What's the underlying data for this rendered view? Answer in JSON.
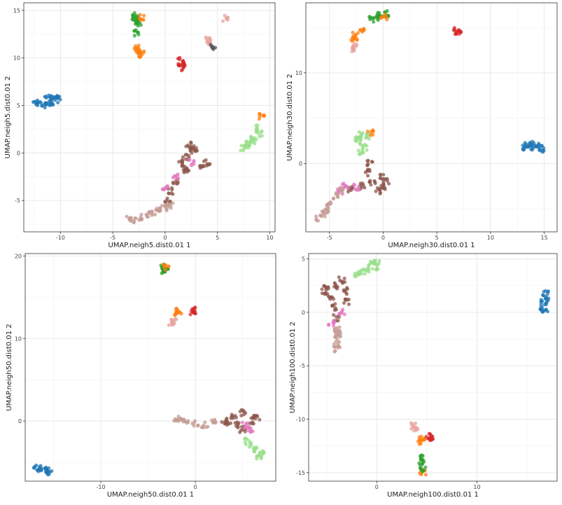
{
  "chart_data": [
    {
      "type": "scatter",
      "xlabel": "UMAP.neigh5.dist0.01 1",
      "ylabel": "UMAP.neigh5.dist0.01 2",
      "xlim": [
        -13.5,
        10.5
      ],
      "ylim": [
        -8.3,
        15.8
      ],
      "xticks": [
        -10,
        -5,
        0,
        5,
        10
      ],
      "yticks": [
        -5,
        0,
        5,
        10,
        15
      ],
      "grid": true,
      "clusters": [
        {
          "color": "#1f77b4",
          "points": [
            [
              -11,
              5.5
            ],
            [
              -12,
              5.2
            ],
            [
              -10.5,
              5.8
            ],
            [
              -11.5,
              5.0
            ],
            [
              -10.2,
              5.6
            ],
            [
              -12.3,
              5.4
            ],
            [
              -11.2,
              6.0
            ],
            [
              -10.8,
              5.3
            ]
          ]
        },
        {
          "color": "#2ca02c",
          "points": [
            [
              -2.8,
              14.4
            ],
            [
              -2.7,
              14.0
            ],
            [
              -2.6,
              13.6
            ],
            [
              -2.7,
              12.6
            ],
            [
              -2.9,
              14.3
            ]
          ]
        },
        {
          "color": "#ff7f0e",
          "points": [
            [
              -2.7,
              11.0
            ],
            [
              -2.5,
              10.6
            ],
            [
              -2.3,
              10.4
            ],
            [
              -2.6,
              10.8
            ],
            [
              -2.2,
              14.3
            ]
          ]
        },
        {
          "color": "#e8a3a0",
          "points": [
            [
              4.1,
              11.9
            ],
            [
              4.3,
              11.6
            ],
            [
              5.8,
              14.2
            ]
          ]
        },
        {
          "color": "#555555",
          "points": [
            [
              4.5,
              11.2
            ]
          ]
        },
        {
          "color": "#d62728",
          "points": [
            [
              1.5,
              9.7
            ],
            [
              1.6,
              9.3
            ],
            [
              1.5,
              9.0
            ]
          ]
        },
        {
          "color": "#98df8a",
          "points": [
            [
              7.5,
              0.5
            ],
            [
              8.0,
              1.0
            ],
            [
              8.5,
              1.5
            ],
            [
              9.0,
              2.0
            ],
            [
              8.8,
              2.6
            ],
            [
              7.8,
              0.8
            ],
            [
              8.3,
              1.3
            ]
          ]
        },
        {
          "color": "#ff7f0e",
          "points": [
            [
              9.2,
              3.8
            ]
          ]
        },
        {
          "color": "#8c564b",
          "points": [
            [
              1.5,
              -1.0
            ],
            [
              2.0,
              -0.5
            ],
            [
              2.5,
              0.2
            ],
            [
              3.0,
              0.5
            ],
            [
              2.0,
              -2.0
            ],
            [
              1.0,
              -3.0
            ],
            [
              0.5,
              -4.0
            ],
            [
              3.5,
              -1.5
            ],
            [
              4.0,
              -1.0
            ],
            [
              2.2,
              0.8
            ],
            [
              1.8,
              -1.5
            ],
            [
              0.2,
              -5.0
            ]
          ]
        },
        {
          "color": "#e377c2",
          "points": [
            [
              0.0,
              -3.8
            ],
            [
              1.0,
              -2.5
            ],
            [
              2.5,
              -1.0
            ]
          ]
        },
        {
          "color": "#c49c94",
          "points": [
            [
              -3.5,
              -7.0
            ],
            [
              -2.5,
              -6.8
            ],
            [
              -1.5,
              -6.5
            ],
            [
              -0.5,
              -6.0
            ],
            [
              0.5,
              -5.5
            ],
            [
              -1.0,
              -6.3
            ],
            [
              -3.0,
              -7.1
            ],
            [
              0.0,
              -5.8
            ]
          ]
        }
      ]
    },
    {
      "type": "scatter",
      "xlabel": "UMAP.neigh30.dist0.01 1",
      "ylabel": "UMAP.neigh30.dist0.01 2",
      "xlim": [
        -7.2,
        16.2
      ],
      "ylim": [
        -7.5,
        17.7
      ],
      "xticks": [
        -5,
        0,
        5,
        10,
        15
      ],
      "yticks": [
        0,
        10
      ],
      "grid": true,
      "clusters": [
        {
          "color": "#1f77b4",
          "points": [
            [
              13.5,
              2.0
            ],
            [
              14.0,
              1.8
            ],
            [
              14.5,
              1.9
            ],
            [
              13.2,
              1.7
            ],
            [
              14.7,
              1.6
            ],
            [
              13.8,
              2.1
            ]
          ]
        },
        {
          "color": "#2ca02c",
          "points": [
            [
              -1.0,
              15.9
            ],
            [
              -0.2,
              16.3
            ],
            [
              0.2,
              16.5
            ],
            [
              -0.6,
              16.1
            ]
          ]
        },
        {
          "color": "#ff7f0e",
          "points": [
            [
              -2.7,
              13.8
            ],
            [
              -2.6,
              14.1
            ],
            [
              -1.9,
              14.8
            ],
            [
              0.1,
              16.1
            ]
          ]
        },
        {
          "color": "#e8a3a0",
          "points": [
            [
              -2.8,
              12.6
            ],
            [
              -2.7,
              13.0
            ]
          ]
        },
        {
          "color": "#d62728",
          "points": [
            [
              6.8,
              14.6
            ],
            [
              7.0,
              14.5
            ]
          ]
        },
        {
          "color": "#98df8a",
          "points": [
            [
              -2.0,
              3.2
            ],
            [
              -2.2,
              2.5
            ],
            [
              -1.8,
              1.8
            ],
            [
              -2.1,
              1.2
            ],
            [
              -1.5,
              3.0
            ],
            [
              -2.4,
              2.8
            ]
          ]
        },
        {
          "color": "#ff7f0e",
          "points": [
            [
              -1.2,
              3.4
            ]
          ]
        },
        {
          "color": "#8c564b",
          "points": [
            [
              -1.0,
              -2.0
            ],
            [
              0.0,
              -1.5
            ],
            [
              -2.0,
              -2.5
            ],
            [
              -3.0,
              -2.8
            ],
            [
              -1.5,
              -1.0
            ],
            [
              0.0,
              -2.5
            ],
            [
              -0.5,
              -3.0
            ],
            [
              -1.2,
              0.0
            ],
            [
              0.3,
              -2.0
            ]
          ]
        },
        {
          "color": "#e377c2",
          "points": [
            [
              -3.5,
              -2.5
            ],
            [
              -4.0,
              -3.0
            ],
            [
              -2.5,
              -2.6
            ]
          ]
        },
        {
          "color": "#c49c94",
          "points": [
            [
              -4.5,
              -3.5
            ],
            [
              -5.0,
              -4.5
            ],
            [
              -5.5,
              -5.5
            ],
            [
              -6.0,
              -6.0
            ],
            [
              -4.0,
              -3.0
            ],
            [
              -5.3,
              -5.0
            ]
          ]
        }
      ]
    },
    {
      "type": "scatter",
      "xlabel": "UMAP.neigh50.dist0.01 1",
      "ylabel": "UMAP.neigh50.dist0.01 2",
      "xlim": [
        -18.0,
        8.5
      ],
      "ylim": [
        -7.3,
        20.3
      ],
      "xticks": [
        -10,
        0
      ],
      "yticks": [
        0,
        10,
        20
      ],
      "grid": true,
      "clusters": [
        {
          "color": "#1f77b4",
          "points": [
            [
              -16.5,
              -5.8
            ],
            [
              -16.0,
              -6.0
            ],
            [
              -15.5,
              -5.9
            ],
            [
              -16.8,
              -5.7
            ],
            [
              -15.8,
              -6.2
            ]
          ]
        },
        {
          "color": "#2ca02c",
          "points": [
            [
              -3.4,
              18.8
            ],
            [
              -3.3,
              18.5
            ],
            [
              -3.4,
              18.0
            ],
            [
              -3.2,
              18.3
            ]
          ]
        },
        {
          "color": "#ff7f0e",
          "points": [
            [
              -3.1,
              18.6
            ],
            [
              -1.8,
              13.3
            ],
            [
              -1.9,
              13.1
            ]
          ]
        },
        {
          "color": "#e8a3a0",
          "points": [
            [
              -2.5,
              11.8
            ],
            [
              -2.3,
              12.0
            ]
          ]
        },
        {
          "color": "#d62728",
          "points": [
            [
              -0.2,
              13.4
            ],
            [
              -0.3,
              13.3
            ]
          ]
        },
        {
          "color": "#98df8a",
          "points": [
            [
              6.0,
              -3.0
            ],
            [
              6.5,
              -3.5
            ],
            [
              7.0,
              -4.0
            ],
            [
              5.5,
              -2.5
            ],
            [
              6.8,
              -4.3
            ]
          ]
        },
        {
          "color": "#8c564b",
          "points": [
            [
              3.0,
              0.0
            ],
            [
              4.0,
              0.5
            ],
            [
              5.0,
              1.0
            ],
            [
              6.0,
              0.0
            ],
            [
              5.0,
              -1.0
            ],
            [
              4.5,
              -0.5
            ],
            [
              3.5,
              -0.3
            ],
            [
              6.5,
              0.5
            ]
          ]
        },
        {
          "color": "#e377c2",
          "points": [
            [
              5.3,
              -0.5
            ],
            [
              5.8,
              -1.0
            ]
          ]
        },
        {
          "color": "#c49c94",
          "points": [
            [
              -2.0,
              0.2
            ],
            [
              -1.0,
              0.0
            ],
            [
              0.0,
              -0.3
            ],
            [
              1.0,
              -0.5
            ],
            [
              2.0,
              -0.2
            ],
            [
              -1.5,
              0.1
            ]
          ]
        }
      ]
    },
    {
      "type": "scatter",
      "xlabel": "UMAP.neigh100.dist0.01 1",
      "ylabel": "UMAP.neigh100.dist0.01 2",
      "xlim": [
        -6.8,
        18.0
      ],
      "ylim": [
        -15.8,
        5.5
      ],
      "xticks": [
        0,
        10
      ],
      "yticks": [
        5,
        0,
        -5,
        -10,
        -15
      ],
      "grid": true,
      "clusters": [
        {
          "color": "#1f77b4",
          "points": [
            [
              16.8,
              1.8
            ],
            [
              16.7,
              1.0
            ],
            [
              16.6,
              0.5
            ],
            [
              16.8,
              0.2
            ],
            [
              16.9,
              1.4
            ]
          ]
        },
        {
          "color": "#98df8a",
          "points": [
            [
              -1.0,
              4.0
            ],
            [
              -0.5,
              4.5
            ],
            [
              0.0,
              4.6
            ],
            [
              -2.0,
              3.5
            ],
            [
              -1.5,
              3.8
            ],
            [
              -0.2,
              4.2
            ]
          ]
        },
        {
          "color": "#8c564b",
          "points": [
            [
              -4.0,
              2.5
            ],
            [
              -3.0,
              2.0
            ],
            [
              -4.5,
              1.5
            ],
            [
              -5.0,
              2.5
            ],
            [
              -3.5,
              3.0
            ],
            [
              -4.2,
              0.5
            ],
            [
              -4.0,
              -0.5
            ],
            [
              -3.0,
              1.0
            ],
            [
              -5.2,
              2.0
            ]
          ]
        },
        {
          "color": "#e377c2",
          "points": [
            [
              -3.5,
              0.0
            ],
            [
              -4.5,
              -1.0
            ]
          ]
        },
        {
          "color": "#c49c94",
          "points": [
            [
              -4.0,
              -1.5
            ],
            [
              -4.0,
              -2.3
            ],
            [
              -4.0,
              -3.0
            ],
            [
              -4.0,
              -3.5
            ],
            [
              -3.9,
              -2.0
            ]
          ]
        },
        {
          "color": "#e8a3a0",
          "points": [
            [
              3.7,
              -10.6
            ],
            [
              3.8,
              -10.8
            ]
          ]
        },
        {
          "color": "#ff7f0e",
          "points": [
            [
              4.4,
              -11.9
            ],
            [
              4.5,
              -12.1
            ],
            [
              4.6,
              -14.9
            ]
          ]
        },
        {
          "color": "#d62728",
          "points": [
            [
              5.2,
              -11.6
            ],
            [
              5.4,
              -11.7
            ]
          ]
        },
        {
          "color": "#2ca02c",
          "points": [
            [
              4.6,
              -13.5
            ],
            [
              4.5,
              -14.0
            ],
            [
              4.6,
              -14.6
            ]
          ]
        }
      ]
    }
  ]
}
